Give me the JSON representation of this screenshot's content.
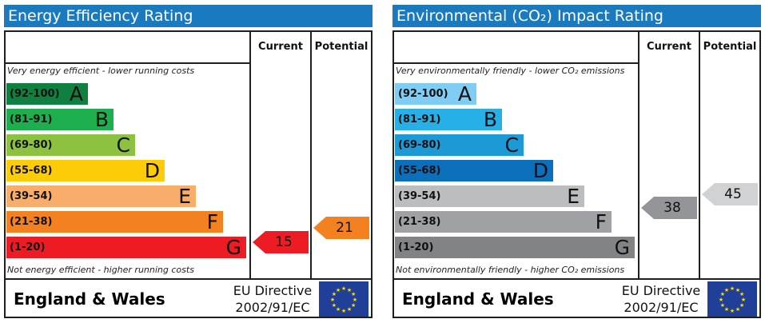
{
  "chart_data": [
    {
      "type": "table",
      "title": "Energy Efficiency Rating",
      "columns": [
        "Current",
        "Potential"
      ],
      "top_caption": "Very energy efficient - lower running costs",
      "bottom_caption": "Not energy efficient - higher running costs",
      "bands": [
        {
          "range": "(92-100)",
          "letter": "A",
          "color": "#0f8040"
        },
        {
          "range": "(81-91)",
          "letter": "B",
          "color": "#1daf4e"
        },
        {
          "range": "(69-80)",
          "letter": "C",
          "color": "#8cc23f"
        },
        {
          "range": "(55-68)",
          "letter": "D",
          "color": "#fdcc09"
        },
        {
          "range": "(39-54)",
          "letter": "E",
          "color": "#f8ad6b"
        },
        {
          "range": "(21-38)",
          "letter": "F",
          "color": "#f3811f"
        },
        {
          "range": "(1-20)",
          "letter": "G",
          "color": "#ed1c24"
        }
      ],
      "current": {
        "value": "15",
        "band": "G",
        "color": "#ed1c24"
      },
      "potential": {
        "value": "21",
        "band": "F",
        "color": "#f3811f"
      },
      "footer": {
        "region": "England & Wales",
        "directive_line1": "EU Directive",
        "directive_line2": "2002/91/EC"
      }
    },
    {
      "type": "table",
      "title": "Environmental (CO₂) Impact Rating",
      "columns": [
        "Current",
        "Potential"
      ],
      "top_caption": "Very environmentally friendly - lower CO₂ emissions",
      "bottom_caption": "Not environmentally friendly - higher CO₂ emissions",
      "bands": [
        {
          "range": "(92-100)",
          "letter": "A",
          "color": "#7fcdf4"
        },
        {
          "range": "(81-91)",
          "letter": "B",
          "color": "#27b0e8"
        },
        {
          "range": "(69-80)",
          "letter": "C",
          "color": "#1b9ad6"
        },
        {
          "range": "(55-68)",
          "letter": "D",
          "color": "#0b6fbb"
        },
        {
          "range": "(39-54)",
          "letter": "E",
          "color": "#bcbdbf"
        },
        {
          "range": "(21-38)",
          "letter": "F",
          "color": "#a0a1a4"
        },
        {
          "range": "(1-20)",
          "letter": "G",
          "color": "#828385"
        }
      ],
      "current": {
        "value": "38",
        "band": "F",
        "color": "#939598"
      },
      "potential": {
        "value": "45",
        "band": "E",
        "color": "#d1d2d3"
      },
      "footer": {
        "region": "England & Wales",
        "directive_line1": "EU Directive",
        "directive_line2": "2002/91/EC"
      }
    }
  ]
}
